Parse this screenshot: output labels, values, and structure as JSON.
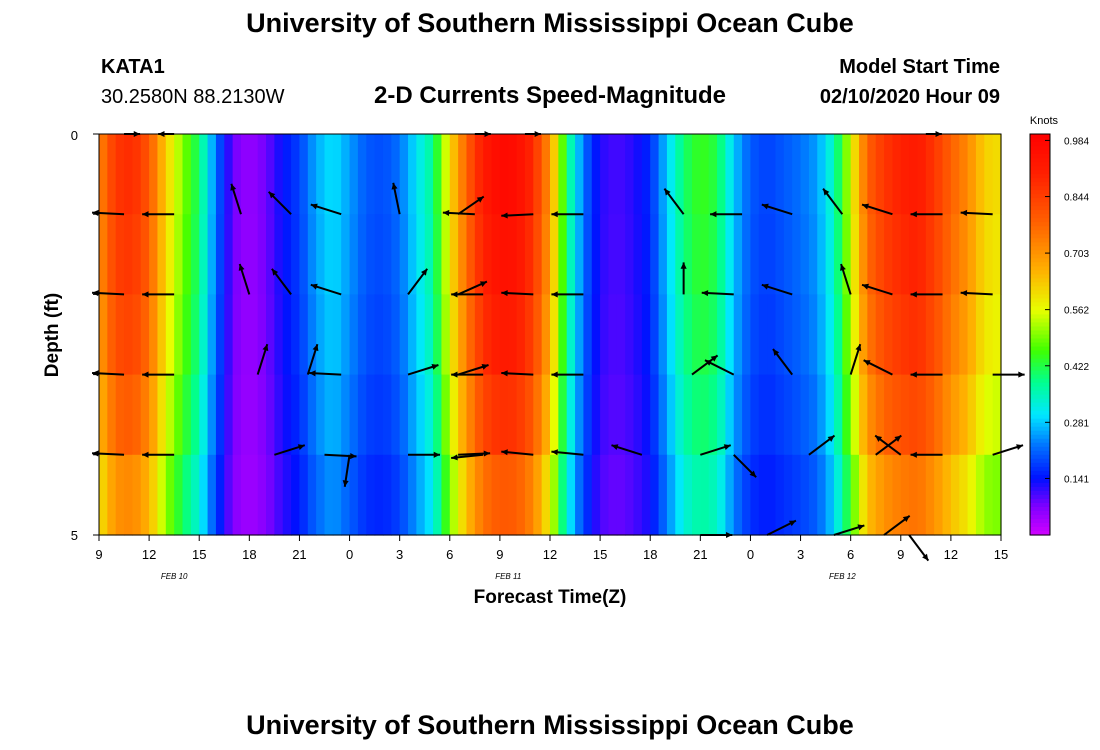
{
  "header": {
    "title": "University of Southern Mississippi Ocean Cube",
    "station_id": "KATA1",
    "station_coords": "30.2580N 88.2130W",
    "plot_title": "2-D Currents Speed-Magnitude",
    "model_start_label": "Model Start Time",
    "model_start_value": "02/10/2020 Hour 09"
  },
  "footer": {
    "title": "University of Southern Mississippi Ocean Cube"
  },
  "chart_data": {
    "type": "heatmap",
    "title": "2-D Currents Speed-Magnitude",
    "xlabel": "Forecast Time(Z)",
    "ylabel": "Depth (ft)",
    "x_tick_labels": [
      "9",
      "12",
      "15",
      "18",
      "21",
      "0",
      "3",
      "6",
      "9",
      "12",
      "15",
      "18",
      "21",
      "0",
      "3",
      "6",
      "9",
      "12",
      "15"
    ],
    "date_labels": [
      {
        "label": "FEB 10",
        "at_hour": 4.5
      },
      {
        "label": "FEB 11",
        "at_hour": 24.5
      },
      {
        "label": "FEB 12",
        "at_hour": 44.5
      }
    ],
    "y_tick_labels": [
      {
        "value": 0,
        "label": "0"
      },
      {
        "value": 5,
        "label": "5"
      }
    ],
    "ylim": [
      0,
      5
    ],
    "xlim_hours": [
      0,
      54
    ],
    "depth_levels": 5,
    "colorbar": {
      "unit": "Knots",
      "tick_labels": [
        "0.984",
        "0.844",
        "0.703",
        "0.562",
        "0.422",
        "0.281",
        "0.141"
      ],
      "tick_values": [
        0.984,
        0.844,
        0.703,
        0.562,
        0.422,
        0.281,
        0.141
      ],
      "range": [
        0.0,
        1.0
      ],
      "stops": [
        {
          "v": 0.0,
          "c": "#d000ff"
        },
        {
          "v": 0.07,
          "c": "#8000ff"
        },
        {
          "v": 0.14,
          "c": "#0010ff"
        },
        {
          "v": 0.22,
          "c": "#0070ff"
        },
        {
          "v": 0.3,
          "c": "#00e8ff"
        },
        {
          "v": 0.38,
          "c": "#00ff90"
        },
        {
          "v": 0.46,
          "c": "#40ff00"
        },
        {
          "v": 0.56,
          "c": "#e8ff00"
        },
        {
          "v": 0.66,
          "c": "#ffb000"
        },
        {
          "v": 0.78,
          "c": "#ff6000"
        },
        {
          "v": 0.9,
          "c": "#ff2000"
        },
        {
          "v": 1.0,
          "c": "#ff0000"
        }
      ]
    },
    "speed_profile": [
      {
        "h": 0,
        "s": 0.72
      },
      {
        "h": 1,
        "s": 0.86
      },
      {
        "h": 2,
        "s": 0.88
      },
      {
        "h": 3,
        "s": 0.8
      },
      {
        "h": 4,
        "s": 0.62
      },
      {
        "h": 5,
        "s": 0.5
      },
      {
        "h": 6,
        "s": 0.4
      },
      {
        "h": 7,
        "s": 0.22
      },
      {
        "h": 8,
        "s": 0.08
      },
      {
        "h": 9,
        "s": 0.05
      },
      {
        "h": 10,
        "s": 0.08
      },
      {
        "h": 11,
        "s": 0.14
      },
      {
        "h": 12,
        "s": 0.18
      },
      {
        "h": 13,
        "s": 0.26
      },
      {
        "h": 14,
        "s": 0.3
      },
      {
        "h": 15,
        "s": 0.25
      },
      {
        "h": 16,
        "s": 0.2
      },
      {
        "h": 17,
        "s": 0.19
      },
      {
        "h": 18,
        "s": 0.22
      },
      {
        "h": 19,
        "s": 0.3
      },
      {
        "h": 20,
        "s": 0.38
      },
      {
        "h": 21,
        "s": 0.6
      },
      {
        "h": 22,
        "s": 0.78
      },
      {
        "h": 23,
        "s": 0.92
      },
      {
        "h": 24,
        "s": 0.97
      },
      {
        "h": 25,
        "s": 0.96
      },
      {
        "h": 26,
        "s": 0.88
      },
      {
        "h": 27,
        "s": 0.7
      },
      {
        "h": 28,
        "s": 0.4
      },
      {
        "h": 29,
        "s": 0.22
      },
      {
        "h": 30,
        "s": 0.12
      },
      {
        "h": 31,
        "s": 0.1
      },
      {
        "h": 32,
        "s": 0.12
      },
      {
        "h": 33,
        "s": 0.16
      },
      {
        "h": 34,
        "s": 0.28
      },
      {
        "h": 35,
        "s": 0.4
      },
      {
        "h": 36,
        "s": 0.45
      },
      {
        "h": 37,
        "s": 0.42
      },
      {
        "h": 38,
        "s": 0.28
      },
      {
        "h": 39,
        "s": 0.2
      },
      {
        "h": 40,
        "s": 0.18
      },
      {
        "h": 41,
        "s": 0.2
      },
      {
        "h": 42,
        "s": 0.22
      },
      {
        "h": 43,
        "s": 0.25
      },
      {
        "h": 44,
        "s": 0.35
      },
      {
        "h": 45,
        "s": 0.55
      },
      {
        "h": 46,
        "s": 0.78
      },
      {
        "h": 47,
        "s": 0.86
      },
      {
        "h": 48,
        "s": 0.9
      },
      {
        "h": 49,
        "s": 0.92
      },
      {
        "h": 50,
        "s": 0.86
      },
      {
        "h": 51,
        "s": 0.78
      },
      {
        "h": 52,
        "s": 0.72
      },
      {
        "h": 53,
        "s": 0.62
      },
      {
        "h": 54,
        "s": 0.6
      }
    ],
    "depth_factors": [
      1.0,
      0.98,
      0.95,
      0.9,
      0.82
    ],
    "vectors": [
      {
        "h": 1.5,
        "d": 0,
        "u": 0.5,
        "v": 0
      },
      {
        "h": 4.5,
        "d": 0,
        "u": -0.5,
        "v": 0
      },
      {
        "h": 22.5,
        "d": 0,
        "u": 0.5,
        "v": 0
      },
      {
        "h": 25.5,
        "d": 0,
        "u": 0.5,
        "v": 0
      },
      {
        "h": 49.5,
        "d": 0,
        "u": 0.5,
        "v": 0
      },
      {
        "h": 1.5,
        "d": 1,
        "u": -1,
        "v": 0.05
      },
      {
        "h": 4.5,
        "d": 1,
        "u": -1,
        "v": 0
      },
      {
        "h": 8.5,
        "d": 1,
        "u": -0.3,
        "v": 0.95
      },
      {
        "h": 11.5,
        "d": 1,
        "u": -0.7,
        "v": 0.7
      },
      {
        "h": 14.5,
        "d": 1,
        "u": -0.95,
        "v": 0.3
      },
      {
        "h": 18,
        "d": 1,
        "u": -0.2,
        "v": 0.98
      },
      {
        "h": 21.5,
        "d": 1,
        "u": 0.8,
        "v": 0.55
      },
      {
        "h": 22.5,
        "d": 1,
        "u": -1,
        "v": 0.05
      },
      {
        "h": 26,
        "d": 1,
        "u": -1,
        "v": -0.05
      },
      {
        "h": 29,
        "d": 1,
        "u": -1,
        "v": 0
      },
      {
        "h": 35,
        "d": 1,
        "u": -0.6,
        "v": 0.8
      },
      {
        "h": 38.5,
        "d": 1,
        "u": -1,
        "v": 0
      },
      {
        "h": 41.5,
        "d": 1,
        "u": -0.95,
        "v": 0.3
      },
      {
        "h": 44.5,
        "d": 1,
        "u": -0.6,
        "v": 0.8
      },
      {
        "h": 47.5,
        "d": 1,
        "u": -0.95,
        "v": 0.3
      },
      {
        "h": 50.5,
        "d": 1,
        "u": -1,
        "v": 0
      },
      {
        "h": 53.5,
        "d": 1,
        "u": -1,
        "v": 0.05
      },
      {
        "h": 1.5,
        "d": 2,
        "u": -1,
        "v": 0.05
      },
      {
        "h": 4.5,
        "d": 2,
        "u": -1,
        "v": 0
      },
      {
        "h": 9,
        "d": 2,
        "u": -0.3,
        "v": 0.95
      },
      {
        "h": 11.5,
        "d": 2,
        "u": -0.6,
        "v": 0.8
      },
      {
        "h": 14.5,
        "d": 2,
        "u": -0.95,
        "v": 0.3
      },
      {
        "h": 18.5,
        "d": 2,
        "u": 0.6,
        "v": 0.8
      },
      {
        "h": 21.5,
        "d": 2,
        "u": 0.9,
        "v": 0.4
      },
      {
        "h": 23,
        "d": 2,
        "u": -1,
        "v": 0
      },
      {
        "h": 26,
        "d": 2,
        "u": -1,
        "v": 0.05
      },
      {
        "h": 29,
        "d": 2,
        "u": -1,
        "v": 0
      },
      {
        "h": 35,
        "d": 2,
        "u": 0,
        "v": 1
      },
      {
        "h": 38,
        "d": 2,
        "u": -1,
        "v": 0.05
      },
      {
        "h": 41.5,
        "d": 2,
        "u": -0.95,
        "v": 0.3
      },
      {
        "h": 45,
        "d": 2,
        "u": -0.3,
        "v": 0.95
      },
      {
        "h": 47.5,
        "d": 2,
        "u": -0.95,
        "v": 0.3
      },
      {
        "h": 50.5,
        "d": 2,
        "u": -1,
        "v": 0
      },
      {
        "h": 53.5,
        "d": 2,
        "u": -1,
        "v": 0.05
      },
      {
        "h": 1.5,
        "d": 3,
        "u": -1,
        "v": 0.05
      },
      {
        "h": 4.5,
        "d": 3,
        "u": -1,
        "v": 0
      },
      {
        "h": 9.5,
        "d": 3,
        "u": 0.3,
        "v": 0.95
      },
      {
        "h": 12.5,
        "d": 3,
        "u": 0.3,
        "v": 0.95
      },
      {
        "h": 14.5,
        "d": 3,
        "u": -1,
        "v": 0.05
      },
      {
        "h": 18.5,
        "d": 3,
        "u": 0.95,
        "v": 0.3
      },
      {
        "h": 21.5,
        "d": 3,
        "u": 0.95,
        "v": 0.3
      },
      {
        "h": 23,
        "d": 3,
        "u": -1,
        "v": 0
      },
      {
        "h": 26,
        "d": 3,
        "u": -1,
        "v": 0.05
      },
      {
        "h": 29,
        "d": 3,
        "u": -1,
        "v": 0
      },
      {
        "h": 35.5,
        "d": 3,
        "u": 0.8,
        "v": 0.6
      },
      {
        "h": 38,
        "d": 3,
        "u": -0.9,
        "v": 0.45
      },
      {
        "h": 41.5,
        "d": 3,
        "u": -0.6,
        "v": 0.8
      },
      {
        "h": 45,
        "d": 3,
        "u": 0.3,
        "v": 0.95
      },
      {
        "h": 47.5,
        "d": 3,
        "u": -0.9,
        "v": 0.45
      },
      {
        "h": 50.5,
        "d": 3,
        "u": -1,
        "v": 0
      },
      {
        "h": 53.5,
        "d": 3,
        "u": 1,
        "v": 0
      },
      {
        "h": 1.5,
        "d": 4,
        "u": -1,
        "v": 0.05
      },
      {
        "h": 4.5,
        "d": 4,
        "u": -1,
        "v": 0
      },
      {
        "h": 10.5,
        "d": 4,
        "u": 0.95,
        "v": 0.3
      },
      {
        "h": 13.5,
        "d": 4,
        "u": 1,
        "v": -0.05
      },
      {
        "h": 15,
        "d": 4,
        "u": -0.15,
        "v": -1
      },
      {
        "h": 18.5,
        "d": 4,
        "u": 1,
        "v": 0
      },
      {
        "h": 21.5,
        "d": 4,
        "u": 1,
        "v": 0.05
      },
      {
        "h": 23,
        "d": 4,
        "u": -1,
        "v": -0.1
      },
      {
        "h": 26,
        "d": 4,
        "u": -1,
        "v": 0.1
      },
      {
        "h": 29,
        "d": 4,
        "u": -1,
        "v": 0.1
      },
      {
        "h": 32.5,
        "d": 4,
        "u": -0.95,
        "v": 0.3
      },
      {
        "h": 36,
        "d": 4,
        "u": 0.95,
        "v": 0.3
      },
      {
        "h": 38,
        "d": 4,
        "u": 0.7,
        "v": -0.7
      },
      {
        "h": 42.5,
        "d": 4,
        "u": 0.8,
        "v": 0.6
      },
      {
        "h": 46.5,
        "d": 4,
        "u": 0.8,
        "v": 0.6
      },
      {
        "h": 48,
        "d": 4,
        "u": -0.8,
        "v": 0.6
      },
      {
        "h": 50.5,
        "d": 4,
        "u": -1,
        "v": 0
      },
      {
        "h": 53.5,
        "d": 4,
        "u": 0.95,
        "v": 0.3
      },
      {
        "h": 36,
        "d": 5,
        "u": 1,
        "v": 0
      },
      {
        "h": 40,
        "d": 5,
        "u": 0.9,
        "v": 0.45
      },
      {
        "h": 44,
        "d": 5,
        "u": 0.95,
        "v": 0.3
      },
      {
        "h": 47,
        "d": 5,
        "u": 0.8,
        "v": 0.6
      },
      {
        "h": 48.5,
        "d": 5,
        "u": 0.6,
        "v": -0.8
      }
    ]
  }
}
